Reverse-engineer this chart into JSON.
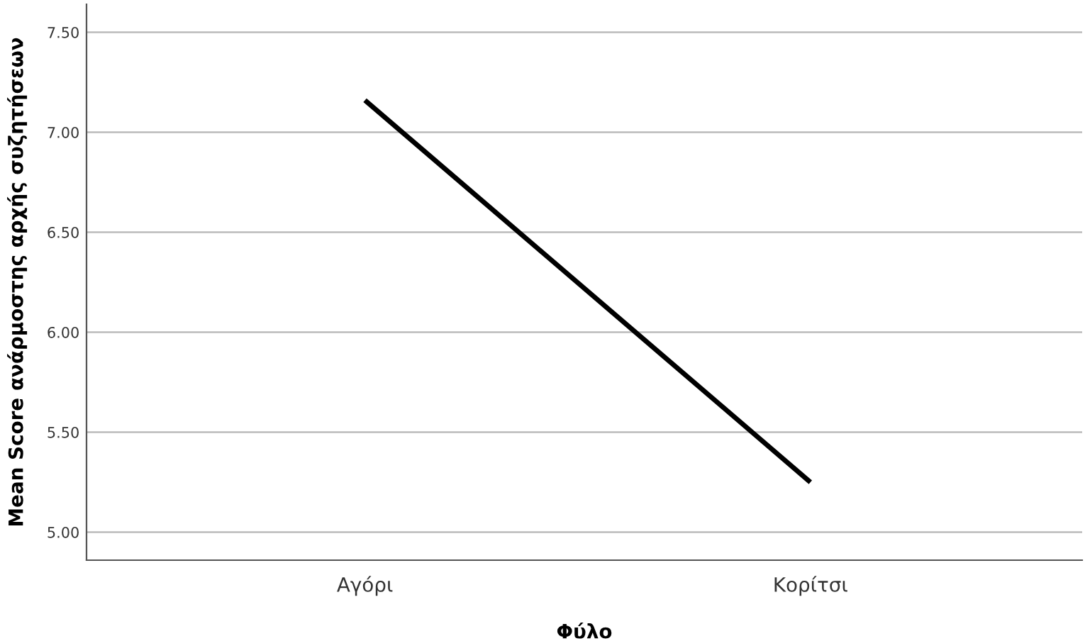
{
  "chart_data": {
    "type": "line",
    "xlabel": "Φύλο",
    "ylabel": "Mean Score ανάρμοστης αρχής συζητήσεων",
    "categories": [
      "Αγόρι",
      "Κορίτσι"
    ],
    "series": [
      {
        "color": "#000000",
        "values": [
          7.16,
          5.25
        ]
      }
    ],
    "ylim": [
      4.86,
      7.64
    ],
    "yticks": [
      {
        "value": 5.0,
        "label": "5.00"
      },
      {
        "value": 5.5,
        "label": "5.50"
      },
      {
        "value": 6.0,
        "label": "6.00"
      },
      {
        "value": 6.5,
        "label": "6.50"
      },
      {
        "value": 7.0,
        "label": "7.00"
      },
      {
        "value": 7.5,
        "label": "7.50"
      }
    ],
    "grid": "y",
    "marker": "none",
    "line_style": "solid"
  }
}
